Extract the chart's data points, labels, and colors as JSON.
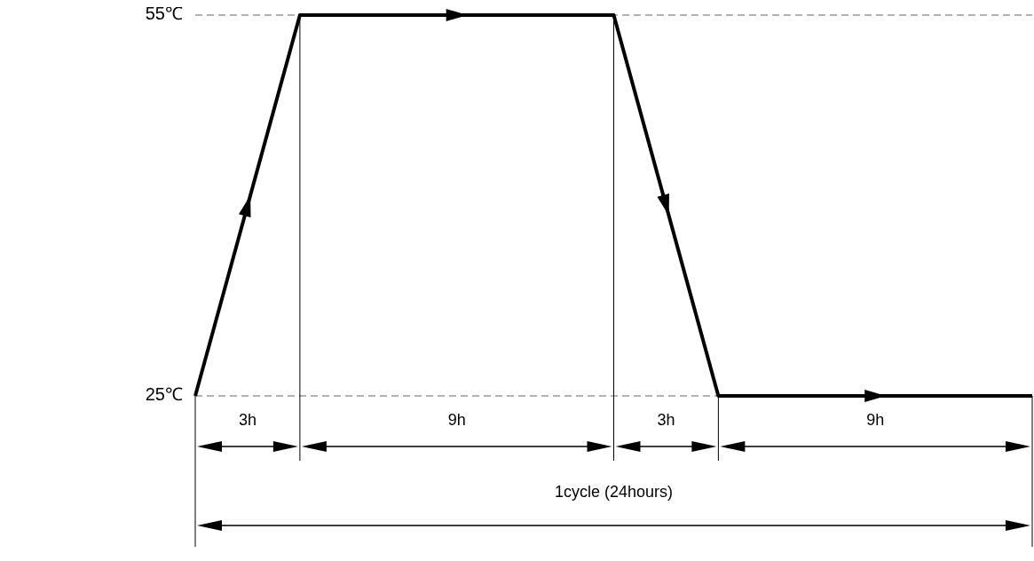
{
  "chart_data": {
    "type": "line",
    "categories": [
      null,
      null,
      null,
      null,
      null,
      null,
      null,
      null,
      null
    ],
    "series": [
      {
        "color": "#000000",
        "values": [
          25,
          55,
          55,
          55,
          55,
          25,
          25,
          25,
          25
        ]
      }
    ],
    "ylim": [
      25,
      55
    ],
    "yticks": [
      {
        "value": 25,
        "label": "25℃"
      },
      {
        "value": 55,
        "label": "55℃"
      }
    ],
    "tick_labels": "y",
    "ref_lines": [
      {
        "axis": "y",
        "value": 55,
        "line_style": "dashed",
        "color": "#666666"
      },
      {
        "axis": "y",
        "value": 25,
        "line_style": "dashed",
        "color": "#666666"
      }
    ],
    "annotations": [
      "3h",
      "9h",
      "3h",
      "9h",
      "1cycle (24hours)"
    ]
  }
}
